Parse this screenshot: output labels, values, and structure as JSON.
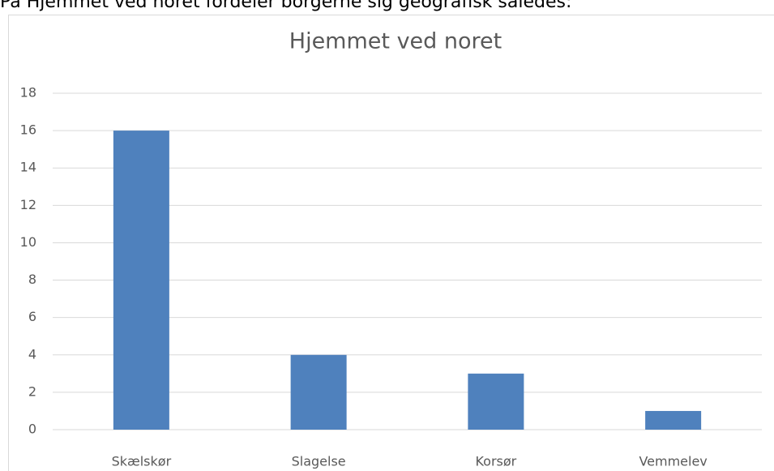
{
  "text": "På Hjemmet ved noret fordeler borgerne sig geografisk således:",
  "chart_data": {
    "type": "bar",
    "title": "Hjemmet ved noret",
    "categories": [
      "Skælskør",
      "Slagelse",
      "Korsør",
      "Vemmelev"
    ],
    "values": [
      16,
      4,
      3,
      1
    ],
    "color": "#4f81bd",
    "ylim": [
      0,
      18
    ],
    "yticks": [
      0,
      2,
      4,
      6,
      8,
      10,
      12,
      14,
      16,
      18
    ],
    "grid": true
  }
}
